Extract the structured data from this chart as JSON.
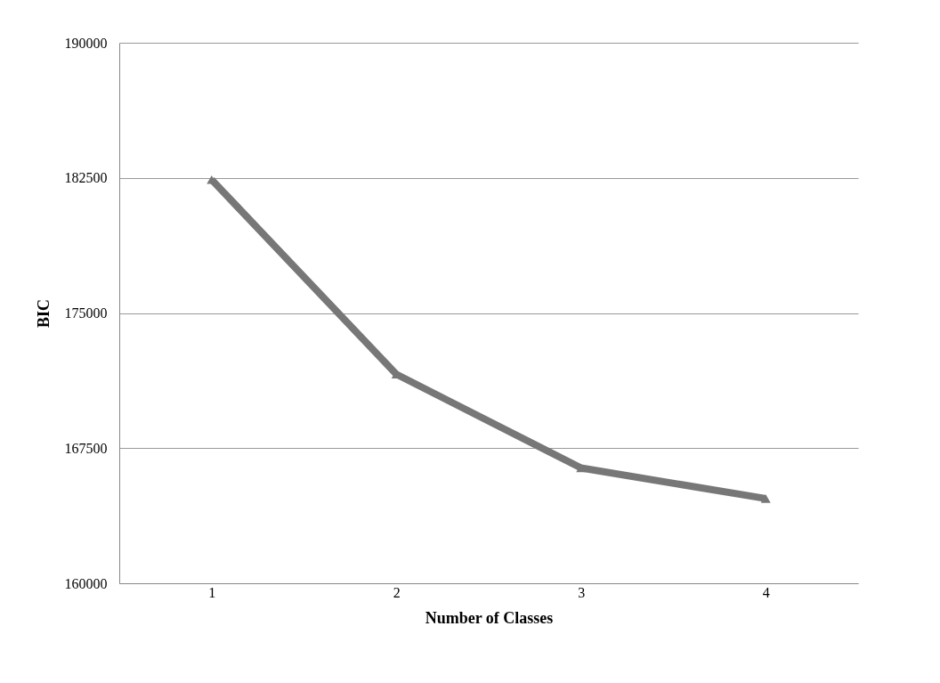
{
  "chart_data": {
    "type": "line",
    "xlabel": "Number of Classes",
    "ylabel": "BIC",
    "categories": [
      "1",
      "2",
      "3",
      "4"
    ],
    "series": [
      {
        "color": "#777777",
        "values": [
          182400,
          171600,
          166400,
          164700
        ]
      }
    ],
    "ylim": [
      160000,
      190000
    ],
    "yticks": [
      160000,
      167500,
      175000,
      182500,
      190000
    ],
    "grid": "y",
    "marker": "triangle",
    "line_style": "solid"
  }
}
